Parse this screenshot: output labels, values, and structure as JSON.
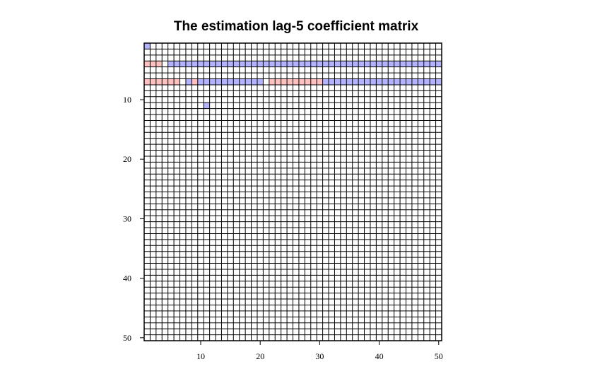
{
  "chart_data": {
    "type": "heatmap",
    "title": "The estimation lag-5 coefficient matrix",
    "xlabel": "",
    "ylabel": "",
    "nrows": 50,
    "ncols": 50,
    "x_ticks": [
      10,
      20,
      30,
      40,
      50
    ],
    "y_ticks": [
      10,
      20,
      30,
      40,
      50
    ],
    "xlim": [
      1,
      50
    ],
    "ylim": [
      50,
      1
    ],
    "grid": true,
    "colors": {
      "zero": "#ffffff",
      "positive": "#b3b3ff",
      "negative": "#ffc0c0",
      "grid_line": "#000000"
    },
    "nonzero_cells": [
      {
        "row": 1,
        "col": 1,
        "sign": "positive"
      },
      {
        "row": 4,
        "col": 1,
        "sign": "negative"
      },
      {
        "row": 4,
        "col": 2,
        "sign": "negative"
      },
      {
        "row": 4,
        "col": 3,
        "sign": "negative"
      },
      {
        "row": 4,
        "cols": [
          5,
          50
        ],
        "sign": "positive"
      },
      {
        "row": 7,
        "cols": [
          1,
          6
        ],
        "sign": "negative"
      },
      {
        "row": 7,
        "col": 8,
        "sign": "positive"
      },
      {
        "row": 7,
        "col": 9,
        "sign": "negative"
      },
      {
        "row": 7,
        "cols": [
          10,
          20
        ],
        "sign": "positive"
      },
      {
        "row": 7,
        "cols": [
          22,
          30
        ],
        "sign": "negative"
      },
      {
        "row": 7,
        "cols": [
          31,
          50
        ],
        "sign": "positive"
      },
      {
        "row": 11,
        "col": 11,
        "sign": "positive"
      }
    ]
  }
}
